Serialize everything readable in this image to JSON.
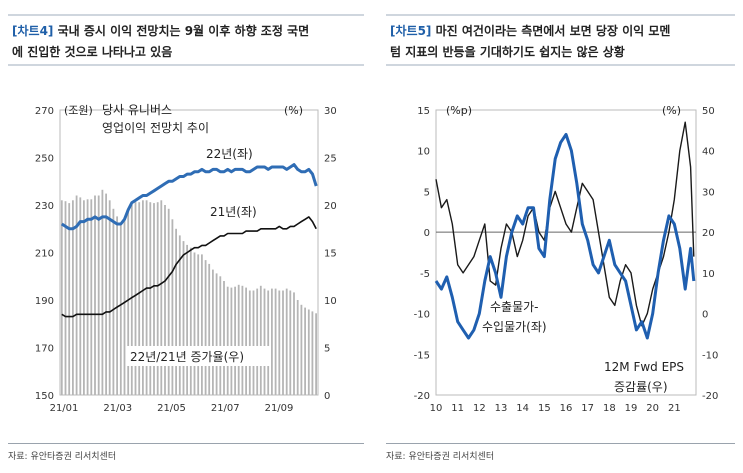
{
  "left": {
    "tag": "[차트4]",
    "title_line1": "국내 증시 이익 전망치는 9월 이후 하향 조정 국면",
    "title_line2": "에 진입한 것으로 나타나고 있음",
    "source": "자료: 유안타증권 리서치센터"
  },
  "right": {
    "tag": "[차트5]",
    "title_line1": "마진 여건이라는 측면에서 보면 당장 이익 모멘",
    "title_line2": "텀 지표의 반등을 기대하기도 쉽지는 않은 상황",
    "source": "자료: 유안타증권 리서치센터"
  },
  "chart_data": [
    {
      "type": "line",
      "title": "당사 유니버스 영업이익 전망치 추이",
      "left_unit": "(조원)",
      "right_unit": "(%)",
      "y_left_lim": [
        150,
        270
      ],
      "y_left_ticks": [
        "270",
        "250",
        "230",
        "210",
        "190",
        "170",
        "150"
      ],
      "y_right_lim": [
        0,
        30
      ],
      "y_right_ticks": [
        "30",
        "25",
        "20",
        "15",
        "10",
        "5",
        "0"
      ],
      "x_ticks": [
        "21/01",
        "21/03",
        "21/05",
        "21/07",
        "21/09"
      ],
      "series": [
        {
          "name": "22년(좌)",
          "axis": "left",
          "color": "#2f6db5",
          "values": [
            222,
            221,
            220,
            220,
            221,
            223,
            223,
            224,
            224,
            225,
            224,
            225,
            225,
            224,
            223,
            222,
            222,
            224,
            228,
            231,
            232,
            233,
            234,
            234,
            235,
            236,
            237,
            238,
            239,
            240,
            240,
            241,
            242,
            242,
            243,
            243,
            244,
            244,
            245,
            244,
            244,
            245,
            245,
            244,
            244,
            245,
            244,
            245,
            245,
            245,
            244,
            244,
            245,
            246,
            246,
            246,
            245,
            246,
            246,
            246,
            246,
            245,
            246,
            247,
            245,
            244,
            244,
            245,
            243,
            238
          ]
        },
        {
          "name": "21년(좌)",
          "axis": "left",
          "color": "#111111",
          "values": [
            184,
            183,
            183,
            183,
            184,
            184,
            184,
            184,
            184,
            184,
            184,
            184,
            185,
            185,
            186,
            187,
            188,
            189,
            190,
            191,
            192,
            193,
            194,
            195,
            195,
            196,
            196,
            197,
            198,
            200,
            202,
            205,
            207,
            209,
            210,
            211,
            212,
            212,
            213,
            213,
            214,
            215,
            216,
            217,
            217,
            218,
            218,
            218,
            218,
            218,
            219,
            219,
            219,
            219,
            220,
            220,
            220,
            220,
            220,
            221,
            220,
            220,
            221,
            221,
            222,
            223,
            224,
            225,
            223,
            220
          ]
        },
        {
          "name": "22년/21년 증가율(우)",
          "axis": "right",
          "type": "bar",
          "color": "#b5b5b5",
          "values": [
            20.5,
            20.4,
            20.2,
            20.5,
            21.0,
            20.8,
            20.5,
            20.6,
            20.6,
            21.0,
            21.0,
            21.6,
            21.2,
            20.5,
            19.6,
            18.8,
            18.0,
            18.4,
            19.5,
            20.0,
            20.3,
            20.3,
            20.5,
            20.5,
            20.3,
            20.2,
            20.3,
            20.5,
            20.0,
            19.6,
            18.5,
            17.5,
            16.8,
            16.2,
            15.8,
            15.5,
            15.0,
            14.8,
            14.8,
            14.2,
            13.8,
            13.2,
            12.8,
            12.5,
            12.0,
            11.4,
            11.3,
            11.4,
            11.6,
            11.5,
            11.3,
            11.0,
            11.0,
            11.2,
            11.5,
            11.2,
            11.0,
            11.2,
            11.2,
            11.0,
            11.0,
            11.2,
            11.0,
            10.8,
            10.0,
            9.5,
            9.2,
            9.0,
            8.8,
            8.6
          ]
        }
      ]
    },
    {
      "type": "line",
      "left_unit": "(%p)",
      "right_unit": "(%)",
      "y_left_lim": [
        -20,
        15
      ],
      "y_left_ticks": [
        "15",
        "10",
        "5",
        "0",
        "-5",
        "-10",
        "-15",
        "-20"
      ],
      "y_right_lim": [
        -20,
        50
      ],
      "y_right_ticks": [
        "50",
        "40",
        "30",
        "20",
        "10",
        "0",
        "-10",
        "-20"
      ],
      "x_ticks": [
        "10",
        "11",
        "12",
        "13",
        "14",
        "15",
        "16",
        "17",
        "18",
        "19",
        "20",
        "21"
      ],
      "zero_line": true,
      "series": [
        {
          "name": "수출물가-수입물가(좌)",
          "axis": "left",
          "color": "#1f5fb0",
          "x": [
            10.0,
            10.25,
            10.5,
            10.75,
            11.0,
            11.25,
            11.5,
            11.75,
            12.0,
            12.25,
            12.5,
            12.75,
            13.0,
            13.25,
            13.5,
            13.75,
            14.0,
            14.25,
            14.5,
            14.75,
            15.0,
            15.25,
            15.5,
            15.75,
            16.0,
            16.25,
            16.5,
            16.75,
            17.0,
            17.25,
            17.5,
            17.75,
            18.0,
            18.25,
            18.5,
            18.75,
            19.0,
            19.25,
            19.5,
            19.75,
            20.0,
            20.25,
            20.5,
            20.75,
            21.0,
            21.25,
            21.5,
            21.75,
            21.9
          ],
          "values": [
            -6,
            -7,
            -5.5,
            -8,
            -11,
            -12,
            -13,
            -12,
            -10,
            -6,
            -3,
            -5,
            -8,
            -3,
            0,
            2,
            1,
            3,
            3,
            -2,
            -3,
            4,
            9,
            11,
            12,
            10,
            6,
            1,
            -1,
            -4,
            -5,
            -3,
            -1,
            -4,
            -5,
            -6,
            -9,
            -12,
            -11,
            -13,
            -10,
            -5,
            -1,
            2,
            1,
            -2,
            -7,
            -2,
            -6
          ]
        },
        {
          "name": "12M Fwd EPS 증감률(우)",
          "axis": "right",
          "color": "#1a1a1a",
          "x": [
            10.0,
            10.25,
            10.5,
            10.75,
            11.0,
            11.25,
            11.5,
            11.75,
            12.0,
            12.25,
            12.5,
            12.75,
            13.0,
            13.25,
            13.5,
            13.75,
            14.0,
            14.25,
            14.5,
            14.75,
            15.0,
            15.25,
            15.5,
            15.75,
            16.0,
            16.25,
            16.5,
            16.75,
            17.0,
            17.25,
            17.5,
            17.75,
            18.0,
            18.25,
            18.5,
            18.75,
            19.0,
            19.25,
            19.5,
            19.75,
            20.0,
            20.25,
            20.5,
            20.75,
            21.0,
            21.25,
            21.5,
            21.75,
            21.9
          ],
          "values": [
            33,
            26,
            28,
            22,
            12,
            10,
            12,
            14,
            18,
            22,
            8,
            7,
            16,
            22,
            20,
            14,
            18,
            24,
            26,
            20,
            18,
            26,
            30,
            26,
            22,
            20,
            26,
            32,
            30,
            28,
            20,
            12,
            4,
            2,
            8,
            12,
            10,
            2,
            -3,
            0,
            6,
            10,
            14,
            20,
            28,
            40,
            47,
            36,
            14
          ]
        }
      ],
      "annotations": [
        {
          "text_lines": [
            "수출물가-",
            "수입물가(좌)"
          ]
        },
        {
          "text_lines": [
            "12M Fwd EPS",
            "증감률(우)"
          ]
        }
      ]
    }
  ]
}
